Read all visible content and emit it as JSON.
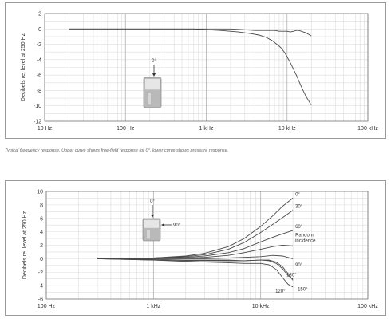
{
  "caption": "Typical frequency response. Upper curve shows free-field response for 0°, lower curve shows pressure response.",
  "chart_data": [
    {
      "type": "line",
      "ylabel": "Decibels re. level at 250 Hz",
      "xscale": "log",
      "xlim": [
        10,
        100000
      ],
      "ylim": [
        -12,
        2
      ],
      "yticks": [
        2,
        0,
        -2,
        -4,
        -6,
        -8,
        -10,
        -12
      ],
      "xticks": [
        {
          "value": 10,
          "label": "10 Hz"
        },
        {
          "value": 100,
          "label": "100 Hz"
        },
        {
          "value": 1000,
          "label": "1 kHz"
        },
        {
          "value": 10000,
          "label": "10 kHz"
        },
        {
          "value": 100000,
          "label": "100 kHz"
        }
      ],
      "grid": true,
      "inset_label": "0°",
      "series": [
        {
          "x": [
            20,
            500,
            1000,
            2000,
            3000,
            4000,
            5000,
            6000,
            7000,
            8000,
            9000,
            10000,
            11000,
            12000,
            13000,
            14000,
            15000,
            17000,
            20000
          ],
          "y": [
            0,
            0,
            0,
            0,
            -0.1,
            -0.2,
            -0.2,
            -0.2,
            -0.2,
            -0.3,
            -0.3,
            -0.3,
            -0.4,
            -0.3,
            -0.2,
            -0.2,
            -0.3,
            -0.5,
            -0.9
          ]
        },
        {
          "x": [
            20,
            700,
            1500,
            2500,
            3500,
            4500,
            5500,
            6500,
            7500,
            8500,
            9500,
            11000,
            13000,
            15000,
            17000,
            20000
          ],
          "y": [
            0,
            0,
            -0.2,
            -0.4,
            -0.6,
            -0.8,
            -1.1,
            -1.5,
            -2.0,
            -2.5,
            -3.2,
            -4.4,
            -6.0,
            -7.5,
            -8.7,
            -9.9
          ]
        }
      ]
    },
    {
      "type": "line",
      "ylabel": "Decibels re. level at 250 Hz",
      "xscale": "log",
      "xlim": [
        100,
        100000
      ],
      "ylim": [
        -6,
        10
      ],
      "yticks": [
        10,
        8,
        6,
        4,
        2,
        0,
        -2,
        -4,
        -6
      ],
      "xticks": [
        {
          "value": 100,
          "label": "100 Hz"
        },
        {
          "value": 1000,
          "label": "1 kHz"
        },
        {
          "value": 10000,
          "label": "10 kHz"
        },
        {
          "value": 100000,
          "label": "100 kHz"
        }
      ],
      "grid": true,
      "inset_labels": [
        "0°",
        "90°"
      ],
      "series": [
        {
          "name": "0°",
          "x": [
            300,
            1000,
            2000,
            3000,
            5000,
            7000,
            10000,
            13000,
            16000,
            20000
          ],
          "y": [
            0,
            0.1,
            0.4,
            0.8,
            1.8,
            3.0,
            4.8,
            6.4,
            7.8,
            9.0
          ]
        },
        {
          "name": "30°",
          "x": [
            300,
            1000,
            2000,
            3000,
            5000,
            7000,
            10000,
            13000,
            16000,
            20000
          ],
          "y": [
            0,
            0.1,
            0.3,
            0.6,
            1.4,
            2.4,
            3.9,
            5.1,
            6.1,
            7.2
          ]
        },
        {
          "name": "60°",
          "x": [
            300,
            1000,
            2000,
            3000,
            5000,
            7000,
            10000,
            13000,
            16000,
            20000
          ],
          "y": [
            0,
            0.1,
            0.2,
            0.4,
            0.9,
            1.5,
            2.5,
            3.2,
            3.7,
            4.2
          ]
        },
        {
          "name": "Random incidence",
          "x": [
            300,
            1000,
            2000,
            3000,
            5000,
            7000,
            10000,
            13000,
            16000,
            20000
          ],
          "y": [
            0,
            0,
            0.1,
            0.2,
            0.5,
            0.9,
            1.4,
            1.8,
            2.0,
            1.9
          ]
        },
        {
          "name": "90°",
          "x": [
            300,
            1000,
            2000,
            3000,
            5000,
            7000,
            10000,
            13000,
            16000,
            20000
          ],
          "y": [
            0,
            0,
            0,
            0,
            0.1,
            0.2,
            0.3,
            0.5,
            0.4,
            0.0
          ]
        },
        {
          "name": "180°",
          "x": [
            300,
            1000,
            2000,
            3000,
            5000,
            7000,
            10000,
            12000,
            14000,
            16000,
            18000,
            20000
          ],
          "y": [
            0,
            -0.2,
            -0.3,
            -0.3,
            -0.3,
            -0.3,
            -0.2,
            -0.3,
            -0.7,
            -1.5,
            -2.5,
            -3.0
          ]
        },
        {
          "name": "120°",
          "x": [
            300,
            1000,
            2000,
            3000,
            5000,
            7000,
            10000,
            12000,
            14000,
            16000,
            18000,
            20000
          ],
          "y": [
            0,
            -0.2,
            -0.4,
            -0.5,
            -0.6,
            -0.7,
            -0.7,
            -0.9,
            -1.6,
            -2.8,
            -3.8,
            -4.2
          ]
        },
        {
          "name": "150°",
          "x": [
            300,
            1000,
            2000,
            3000,
            5000,
            7000,
            10000,
            12000,
            14000,
            16000,
            18000,
            20000
          ],
          "y": [
            0,
            -0.1,
            -0.2,
            -0.2,
            -0.2,
            -0.3,
            -0.2,
            -0.2,
            -0.5,
            -1.2,
            -2.2,
            -3.2
          ]
        }
      ]
    }
  ]
}
